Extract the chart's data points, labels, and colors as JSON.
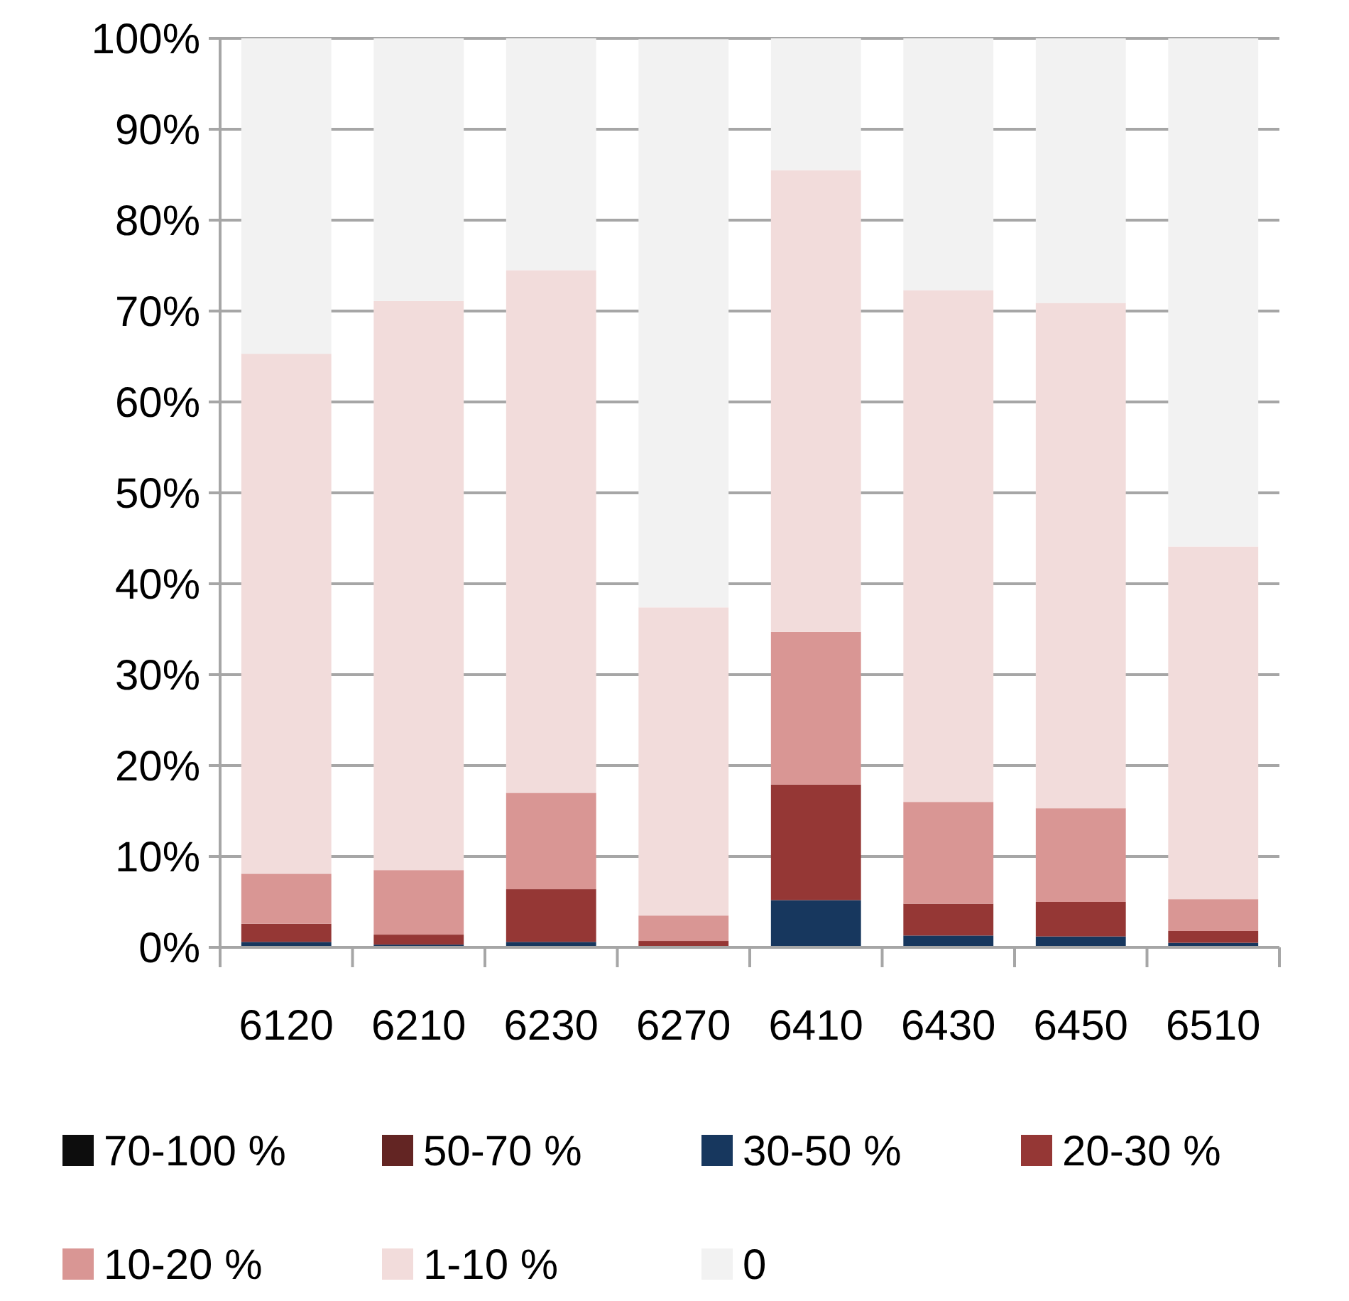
{
  "chart_data": {
    "type": "bar",
    "stacked": true,
    "categories": [
      "6120",
      "6210",
      "6230",
      "6270",
      "6410",
      "6430",
      "6450",
      "6510"
    ],
    "ylim": [
      0,
      100
    ],
    "yticks": [
      {
        "value": 0,
        "label": "0%"
      },
      {
        "value": 10,
        "label": "10%"
      },
      {
        "value": 20,
        "label": "20%"
      },
      {
        "value": 30,
        "label": "30%"
      },
      {
        "value": 40,
        "label": "40%"
      },
      {
        "value": 50,
        "label": "50%"
      },
      {
        "value": 60,
        "label": "60%"
      },
      {
        "value": 70,
        "label": "70%"
      },
      {
        "value": 80,
        "label": "80%"
      },
      {
        "value": 90,
        "label": "90%"
      },
      {
        "value": 100,
        "label": "100%"
      }
    ],
    "grid": "y",
    "legend": "bottom",
    "series": [
      {
        "name": "70-100 %",
        "color": "#0d0d0d",
        "values": [
          0,
          0,
          0,
          0,
          0,
          0,
          0,
          0
        ]
      },
      {
        "name": "50-70 %",
        "color": "#632523",
        "values": [
          0,
          0,
          0,
          0,
          0,
          0,
          0,
          0
        ]
      },
      {
        "name": "30-50 %",
        "color": "#17375e",
        "values": [
          0.6,
          0.3,
          0.6,
          null,
          5.2,
          1.3,
          1.2,
          0.5
        ]
      },
      {
        "name": "20-30 %",
        "color": "#953735",
        "values": [
          2.0,
          1.1,
          5.8,
          0.7,
          12.7,
          3.5,
          3.8,
          1.3
        ]
      },
      {
        "name": "10-20 %",
        "color": "#d99694",
        "values": [
          5.5,
          7.1,
          10.6,
          2.8,
          16.8,
          11.2,
          10.3,
          3.5
        ]
      },
      {
        "name": "1-10 %",
        "color": "#f2dcdb",
        "values": [
          57.2,
          62.6,
          57.5,
          33.9,
          50.8,
          56.3,
          55.6,
          38.8
        ]
      },
      {
        "name": "0",
        "color": "#f2f2f2",
        "values": [
          34.7,
          28.9,
          25.5,
          62.5,
          14.5,
          27.7,
          29.1,
          55.9
        ]
      }
    ]
  }
}
